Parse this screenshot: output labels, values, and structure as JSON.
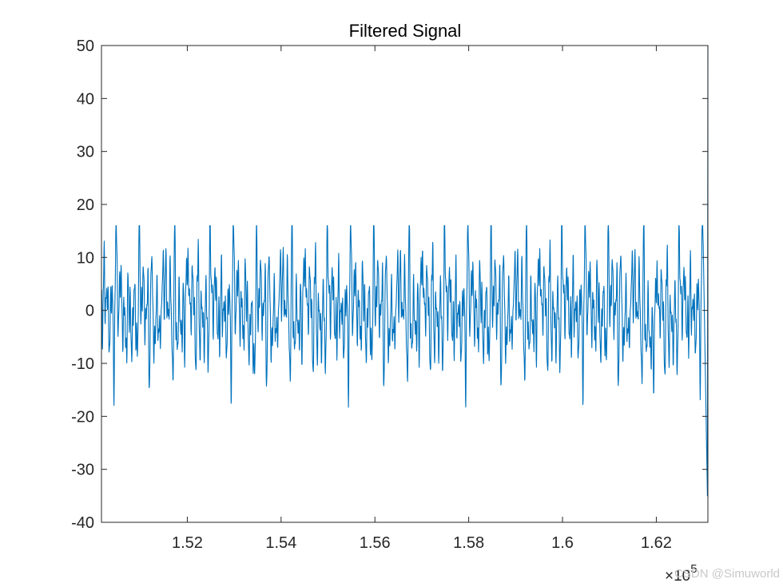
{
  "chart_data": {
    "type": "line",
    "title": "Filtered Signal",
    "xlabel": "",
    "ylabel": "",
    "xlim": [
      150170,
      163100
    ],
    "ylim": [
      -40,
      50
    ],
    "x_ticks": [
      152000,
      154000,
      156000,
      158000,
      160000,
      162000
    ],
    "x_tick_labels": [
      "1.52",
      "1.54",
      "1.56",
      "1.58",
      "1.6",
      "1.62"
    ],
    "y_ticks": [
      -40,
      -30,
      -20,
      -10,
      0,
      10,
      20,
      30,
      40,
      50
    ],
    "y_tick_labels": [
      "-40",
      "-30",
      "-20",
      "-10",
      "0",
      "10",
      "20",
      "30",
      "40",
      "50"
    ],
    "x_exponent": {
      "base": "×10",
      "power": "5"
    },
    "grid": false,
    "line_color": "#0072BD",
    "series": [
      {
        "x": [
          150170,
          150350,
          150550,
          150750,
          151000,
          151300,
          151550,
          151800,
          152050,
          152300,
          152550,
          152800,
          153050,
          153300,
          153400,
          153550,
          153800,
          154050,
          154300,
          154550,
          154800,
          155050,
          155300,
          155550,
          155800,
          156050,
          156300,
          156550,
          156800,
          157050,
          157300,
          157550,
          157800,
          158050,
          158300,
          158550,
          158800,
          159050,
          159300,
          159550,
          159800,
          160050,
          160300,
          160550,
          160800,
          161050,
          161300,
          161550,
          161800,
          161950,
          162050,
          162300,
          162550,
          162800,
          163000,
          163090,
          163100
        ],
        "y": [
          8.5,
          -6,
          14,
          -17,
          13.5,
          -12.5,
          15,
          -12.5,
          15,
          -12,
          14.5,
          -12,
          15,
          -11,
          -15,
          14,
          -13,
          15.5,
          -12,
          14.5,
          -14.5,
          14.5,
          -13,
          14.5,
          -12,
          14.5,
          -13.5,
          14.5,
          -12,
          14.5,
          -12.5,
          14.5,
          -15,
          14.5,
          -12,
          14.5,
          -13,
          14.5,
          -12,
          14.5,
          -12.5,
          14.5,
          -12,
          14,
          -12,
          14.5,
          -12.5,
          14,
          -14,
          -18.5,
          12,
          -16,
          14,
          -10,
          16,
          -35,
          50
        ]
      }
    ],
    "watermark": "CSDN @Simuworld"
  }
}
